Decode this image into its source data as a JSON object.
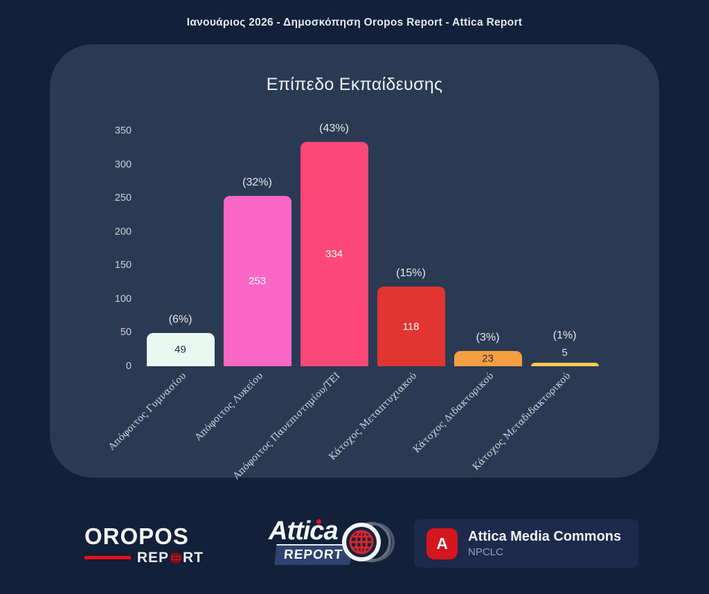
{
  "header": {
    "title": "Ιανουάριος 2026 - Δημοσκόπηση Oropos Report - Attica Report"
  },
  "chart_data": {
    "type": "bar",
    "title": "Επίπεδο Εκπαίδευσης",
    "categories": [
      "Απόφοιτος Γυμνασίου",
      "Απόφοιτος Λυκείου",
      "Απόφοιτος Πανεπιστημίου/ΤΕΙ",
      "Κάτοχος Μεταπτυχιακού",
      "Κάτοχος Διδακτορικού",
      "Κάτοχος Μεταδιδακτορικού"
    ],
    "values": [
      49,
      253,
      334,
      118,
      23,
      5
    ],
    "percent_labels": [
      "(6%)",
      "(32%)",
      "(43%)",
      "(15%)",
      "(3%)",
      "(1%)"
    ],
    "bar_colors": [
      "#eafaf2",
      "#fb67c5",
      "#fc4779",
      "#e23431",
      "#f59e42",
      "#fbc94f"
    ],
    "value_label_colors": [
      "#1e2b3a",
      "#ffffff",
      "#ffffff",
      "#ffffff",
      "#1e2b3a",
      "#d9dee4"
    ],
    "xlabel": "",
    "ylabel": "",
    "ylim": [
      0,
      350
    ],
    "yticks": [
      0,
      50,
      100,
      150,
      200,
      250,
      300,
      350
    ],
    "grid": false,
    "legend_position": "none"
  },
  "footer": {
    "oropos_logo": {
      "name": "OROPOS",
      "report_left": "REP",
      "report_right": "RT"
    },
    "attica_logo": {
      "name": "Attica",
      "report": "REPORT"
    },
    "amc_card": {
      "initial": "A",
      "title": "Attica Media Commons",
      "subtitle": "NPCLC"
    }
  },
  "colors": {
    "page_bg": "#122039",
    "panel_bg": "#2b3a53",
    "accent_red": "#e8121b",
    "amc_badge_red": "#d5161f"
  }
}
